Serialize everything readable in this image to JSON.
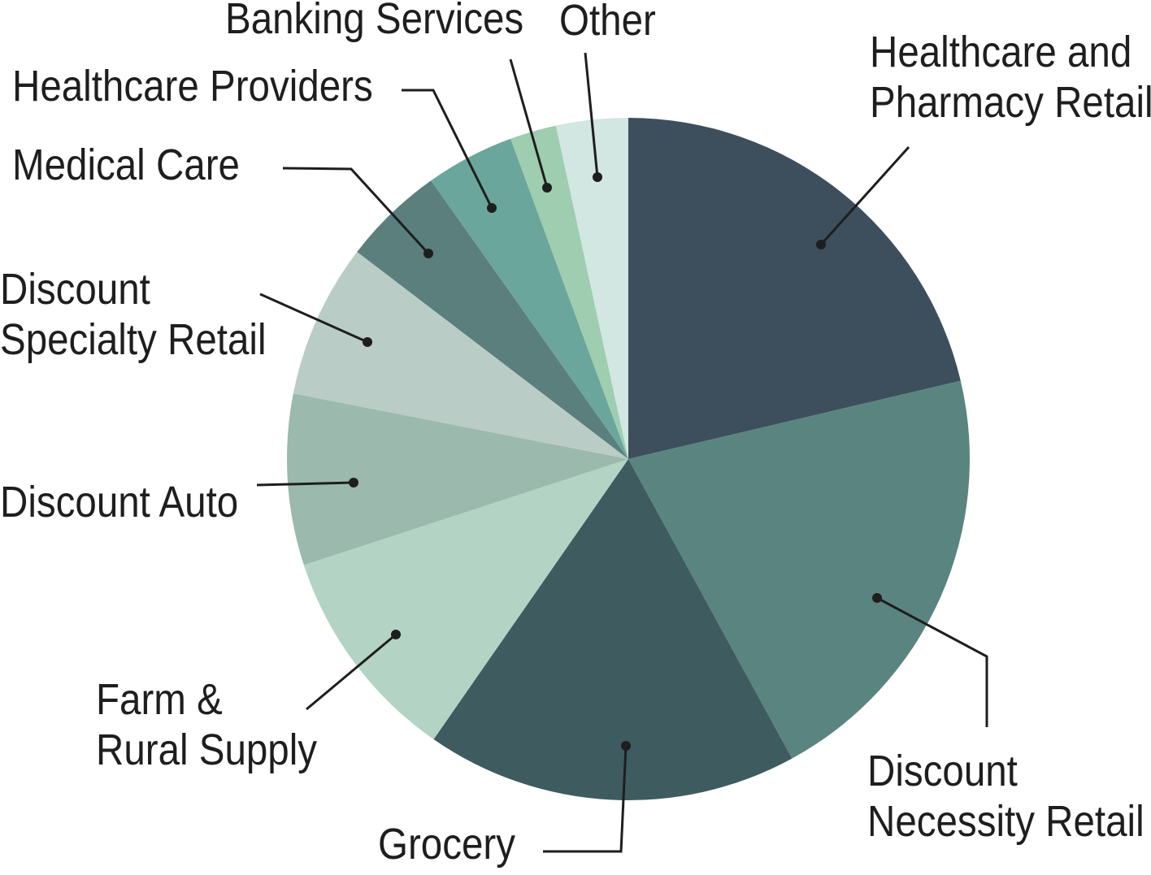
{
  "chart_data": {
    "type": "pie",
    "categories": [
      "Healthcare and Pharmacy Retail",
      "Discount Necessity Retail",
      "Grocery",
      "Farm & Rural Supply",
      "Discount Auto",
      "Discount Specialty Retail",
      "Medical Care",
      "Healthcare Providers",
      "Banking Services",
      "Other"
    ],
    "values": [
      21.3,
      20.7,
      17.6,
      10.3,
      8.1,
      7.3,
      4.8,
      4.2,
      2.2,
      3.4
    ],
    "colors": [
      "#3d4f5c",
      "#5a8480",
      "#3e5c60",
      "#b3d4c4",
      "#9bb9ac",
      "#b9ccc6",
      "#5a7f7c",
      "#6ba69c",
      "#9fcdb0",
      "#d2e6e2"
    ]
  }
}
